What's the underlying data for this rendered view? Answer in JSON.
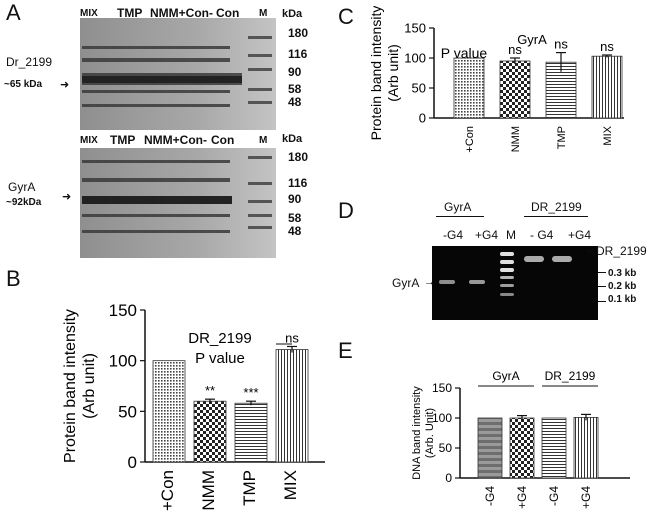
{
  "panels": {
    "A": {
      "letter": "A",
      "gel_top": {
        "lanes": [
          "MIX",
          "TMP",
          "NMM+Con-",
          "Con",
          "M"
        ],
        "kda_label": "kDa",
        "markers": [
          "180",
          "116",
          "90",
          "58",
          "48"
        ],
        "protein_name": "Dr_2199",
        "protein_size": "~65 kDa"
      },
      "gel_bottom": {
        "lanes": [
          "MIX",
          "TMP",
          "NMM+Con-",
          "Con",
          "M"
        ],
        "kda_label": "kDa",
        "markers": [
          "180",
          "116",
          "90",
          "58",
          "48"
        ],
        "protein_name": "GyrA",
        "protein_size": "~92kDa"
      }
    },
    "B": {
      "letter": "B"
    },
    "C": {
      "letter": "C"
    },
    "D": {
      "letter": "D",
      "group_labels": [
        "GyrA",
        "DR_2199"
      ],
      "lane_labels": [
        "-G4",
        "+G4",
        "M",
        "- G4",
        "+G4"
      ],
      "right_label": "DR_2199",
      "left_label": "GyrA",
      "markers": [
        "0.3 kb",
        "0.2 kb",
        "0.1 kb"
      ]
    },
    "E": {
      "letter": "E"
    }
  },
  "chart_data": [
    {
      "panel": "B",
      "type": "bar",
      "categories": [
        "+Con",
        "NMM",
        "TMP",
        "MIX"
      ],
      "values": [
        100,
        60,
        58,
        111
      ],
      "errors": [
        0,
        2,
        2,
        3
      ],
      "significance": [
        "",
        "**",
        "***",
        "ns"
      ],
      "ylabel": "Protein band intensity (Arb unit)",
      "ylim": [
        0,
        150
      ],
      "yticks": [
        0,
        50,
        100,
        150
      ],
      "annotations": [
        "DR_2199",
        "P value"
      ],
      "patterns": [
        "dots",
        "check",
        "hlines",
        "vlines"
      ]
    },
    {
      "panel": "C",
      "type": "bar",
      "categories": [
        "+Con",
        "NMM",
        "TMP",
        "MIX"
      ],
      "values": [
        100,
        95,
        93,
        103
      ],
      "errors": [
        0,
        5,
        16,
        2
      ],
      "significance": [
        "",
        "ns",
        "ns",
        "ns"
      ],
      "ylabel": "Protein band intensity (Arb unit)",
      "ylim": [
        0,
        150
      ],
      "yticks": [
        0,
        50,
        100,
        150
      ],
      "annotations": [
        "P value",
        "GyrA"
      ],
      "patterns": [
        "dots",
        "check",
        "hlines",
        "vlines"
      ]
    },
    {
      "panel": "E",
      "type": "bar",
      "categories": [
        "-G4",
        "+G4",
        "-G4",
        "+G4"
      ],
      "group_labels": [
        "GyrA",
        "DR_2199"
      ],
      "values": [
        100,
        100,
        100,
        101
      ],
      "errors": [
        0,
        4,
        0,
        5
      ],
      "ylabel": "DNA band intensity (Arb. Unit)",
      "ylim": [
        0,
        150
      ],
      "yticks": [
        0,
        50,
        100,
        150
      ],
      "patterns": [
        "hstripes",
        "check",
        "hlines",
        "vlines"
      ]
    }
  ]
}
